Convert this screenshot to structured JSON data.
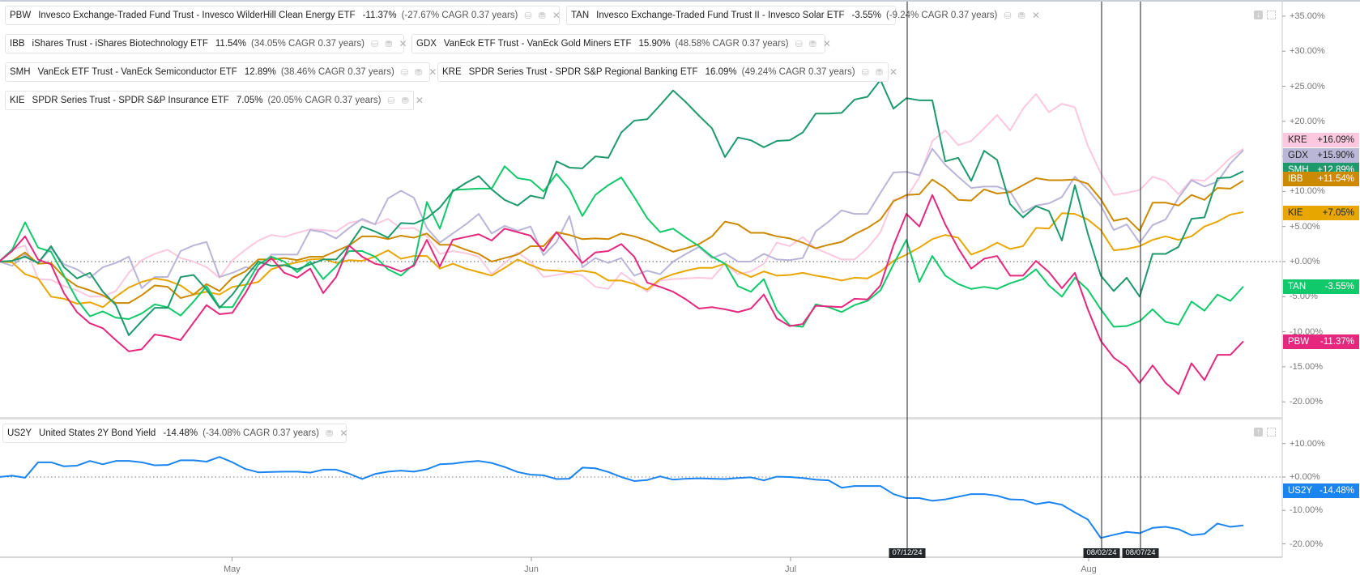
{
  "legends_top": [
    {
      "ticker": "PBW",
      "name": "Invesco Exchange-Traded Fund Trust - Invesco WilderHill Clean Energy ETF",
      "change": "-11.37%",
      "cagr": "(-27.67% CAGR 0.37 years)",
      "color": "#e5287e"
    },
    {
      "ticker": "TAN",
      "name": "Invesco Exchange-Traded Fund Trust II - Invesco Solar ETF",
      "change": "-3.55%",
      "cagr": "(-9.24% CAGR 0.37 years)",
      "color": "#10c96a"
    },
    {
      "ticker": "IBB",
      "name": "iShares Trust - iShares Biotechnology ETF",
      "change": "11.54%",
      "cagr": "(34.05% CAGR 0.37 years)",
      "color": "#cc8a00"
    },
    {
      "ticker": "GDX",
      "name": "VanEck ETF Trust - VanEck Gold Miners ETF",
      "change": "15.90%",
      "cagr": "(48.58% CAGR 0.37 years)",
      "color": "#b9b5d8"
    },
    {
      "ticker": "SMH",
      "name": "VanEck ETF Trust - VanEck Semiconductor ETF",
      "change": "12.89%",
      "cagr": "(38.46% CAGR 0.37 years)",
      "color": "#1d9a6c"
    },
    {
      "ticker": "KRE",
      "name": "SPDR Series Trust - SPDR S&P Regional Banking ETF",
      "change": "16.09%",
      "cagr": "(49.24% CAGR 0.37 years)",
      "color": "#fbc8df"
    },
    {
      "ticker": "KIE",
      "name": "SPDR Series Trust - SPDR S&P Insurance ETF",
      "change": "7.05%",
      "cagr": "(20.05% CAGR 0.37 years)",
      "color": "#e8a600"
    }
  ],
  "legend_bottom": {
    "ticker": "US2Y",
    "name": "United States 2Y Bond Yield",
    "change": "-14.48%",
    "cagr": "(-34.08% CAGR 0.37 years)",
    "color": "#1a84f0"
  },
  "badges": [
    {
      "ticker": "KRE",
      "value": "+16.09%",
      "bg": "#fbc8df",
      "fg": "#222"
    },
    {
      "ticker": "GDX",
      "value": "+15.90%",
      "bg": "#bab6d8",
      "fg": "#222"
    },
    {
      "ticker": "SMH",
      "value": "+12.89%",
      "bg": "#1d9a6c",
      "fg": "#fff"
    },
    {
      "ticker": "IBB",
      "value": "+11.54%",
      "bg": "#cc8a00",
      "fg": "#fff"
    },
    {
      "ticker": "KIE",
      "value": "+7.05%",
      "bg": "#e8a600",
      "fg": "#222"
    },
    {
      "ticker": "TAN",
      "value": "-3.55%",
      "bg": "#10c96a",
      "fg": "#fff"
    },
    {
      "ticker": "PBW",
      "value": "-11.37%",
      "bg": "#e5287e",
      "fg": "#fff"
    },
    {
      "ticker": "US2Y",
      "value": "-14.48%",
      "bg": "#1a84f0",
      "fg": "#fff"
    }
  ],
  "chart_data": [
    {
      "type": "line",
      "title": "",
      "ylabel": "",
      "ylim": [
        -20,
        35
      ],
      "yticks": [
        "+35.00%",
        "+30.00%",
        "+25.00%",
        "+20.00%",
        "+15.00%",
        "+10.00%",
        "+5.00%",
        "+0.00%",
        "-5.00%",
        "-10.00%",
        "-15.00%",
        "-20.00%"
      ],
      "ytick_values": [
        35,
        30,
        25,
        20,
        15,
        10,
        5,
        0,
        -5,
        -10,
        -15,
        -20
      ],
      "x_month_labels": [
        {
          "label": "May",
          "index": 17.9
        },
        {
          "label": "Jun",
          "index": 41
        },
        {
          "label": "Jul",
          "index": 61
        },
        {
          "label": "Aug",
          "index": 84
        }
      ],
      "markers": [
        {
          "label": "07/12/24",
          "index": 70
        },
        {
          "label": "08/02/24",
          "index": 85
        },
        {
          "label": "08/07/24",
          "index": 88
        }
      ],
      "series": [
        {
          "name": "KRE",
          "color": "#fbc8df",
          "values": [
            0,
            1.7,
            2.3,
            -2.5,
            -2.6,
            -3.5,
            -4.1,
            -5.0,
            -5.0,
            -4.2,
            -1.6,
            0.2,
            1.1,
            1.7,
            0.5,
            0,
            -0.8,
            -2.3,
            0.2,
            1.7,
            3.0,
            3.8,
            3.5,
            4.1,
            4.6,
            4.5,
            4.3,
            5.5,
            5.9,
            5.3,
            6.1,
            4.7,
            4.8,
            3.6,
            1.1,
            1.5,
            1.2,
            0.7,
            -1.8,
            -0.2,
            1.3,
            0,
            -2.2,
            -1.9,
            -1.6,
            -2.0,
            -3.6,
            -3.9,
            -1.6,
            -2.9,
            -4.3,
            -2.7,
            -2.5,
            -2.4,
            -2.3,
            -2.4,
            -0.3,
            -1.8,
            -1.4,
            -0.3,
            2.7,
            2.2,
            3.5,
            1.9,
            1.1,
            0.3,
            0.3,
            1.9,
            4.2,
            8.8,
            9.1,
            12.0,
            17.2,
            18.7,
            16.6,
            17.2,
            19.0,
            20.9,
            18.7,
            21.8,
            23.9,
            21.3,
            22.5,
            22.0,
            16.5,
            12.6,
            9.5,
            9.8,
            10.2,
            12.1,
            11.5,
            9.6,
            11.7,
            11.5,
            13.0,
            14.8,
            16.09
          ]
        },
        {
          "name": "GDX",
          "color": "#b9b5d8",
          "values": [
            0,
            -0.6,
            1.0,
            -0.2,
            1.9,
            -0.4,
            -1.1,
            -2.3,
            -0.8,
            -0.2,
            0.7,
            -3.8,
            -2.2,
            -2.2,
            1.5,
            2.3,
            2.8,
            -2.2,
            -1.6,
            -0.8,
            -1.2,
            1.0,
            1.0,
            1.0,
            4.5,
            4.2,
            3.3,
            4.8,
            6.1,
            5.3,
            9.0,
            10.1,
            9.1,
            4.8,
            2.7,
            4.0,
            5.3,
            6.8,
            4.0,
            5.1,
            4.4,
            5.0,
            0.9,
            2.8,
            6.5,
            -0.8,
            0.5,
            -0.2,
            0.5,
            -2.0,
            -1.3,
            -1.8,
            0,
            1.1,
            2.1,
            0.5,
            1.2,
            0,
            0,
            1.1,
            0.3,
            0.2,
            0.5,
            4.3,
            5.7,
            7.3,
            6.8,
            6.8,
            9.8,
            12.7,
            12.8,
            12.3,
            16.1,
            13.8,
            12.1,
            10.5,
            10.7,
            10.7,
            10.0,
            7.0,
            8.0,
            8.3,
            9.2,
            12.1,
            10.3,
            8.0,
            4.5,
            5.3,
            2.7,
            5.2,
            6.0,
            9.1,
            11.6,
            10.7,
            11.4,
            14.0,
            15.9
          ]
        },
        {
          "name": "KIE",
          "color": "#e8a600",
          "values": [
            0,
            -0.1,
            -1.8,
            -2.4,
            -5.0,
            -5.3,
            -6.0,
            -5.8,
            -6.5,
            -5.0,
            -3.7,
            -2.9,
            -2.4,
            -2.7,
            -3.4,
            -4.7,
            -4.3,
            -4.7,
            -3.6,
            -3.3,
            -2.9,
            -1.1,
            -0.5,
            -0.1,
            0.3,
            0.4,
            -0.2,
            0.2,
            0.1,
            0.7,
            1.6,
            0.4,
            0.8,
            0.8,
            -1.0,
            -0.3,
            -1.0,
            -1.5,
            -2.0,
            -0.9,
            0.3,
            -0.5,
            -1.2,
            -1.3,
            -1.5,
            -1.3,
            -1.6,
            -2.7,
            -2.7,
            -3.2,
            -4.0,
            -2.5,
            -1.8,
            -1.3,
            -0.9,
            -0.9,
            -0.3,
            -1.4,
            -2.2,
            -1.4,
            -2.0,
            -1.9,
            -1.6,
            -2.0,
            -2.3,
            -2.7,
            -2.3,
            -2.4,
            -1.4,
            0.1,
            1.0,
            2.0,
            3.2,
            3.8,
            3.4,
            1.0,
            1.7,
            2.7,
            1.8,
            2.2,
            4.8,
            4.7,
            6.9,
            6.8,
            6.0,
            4.5,
            1.6,
            1.8,
            2.2,
            3.1,
            3.6,
            3.1,
            3.6,
            5.0,
            5.7,
            6.7,
            7.05
          ]
        },
        {
          "name": "IBB",
          "color": "#cc8a00",
          "values": [
            0,
            0.1,
            1.3,
            -0.3,
            -0.2,
            -2.2,
            -3.5,
            -4.1,
            -4.8,
            -5.9,
            -5.9,
            -4.8,
            -3.4,
            -3.6,
            -5.2,
            -4.7,
            -3.2,
            -4.2,
            -2.3,
            -1.4,
            0.3,
            0.3,
            0.5,
            0.2,
            0.7,
            0.7,
            1.5,
            2.3,
            3.6,
            3.6,
            3.2,
            3.7,
            3.4,
            4.0,
            2.4,
            2.4,
            1.7,
            1.1,
            0,
            0.5,
            1.0,
            2.2,
            2.2,
            4.2,
            3.8,
            3.2,
            3.3,
            3.2,
            4.0,
            3.6,
            3.0,
            2.2,
            1.4,
            1.9,
            2.5,
            3.6,
            5.7,
            5.3,
            4.1,
            4.1,
            3.6,
            3.3,
            2.7,
            1.9,
            2.4,
            2.8,
            3.9,
            4.8,
            6.0,
            8.6,
            9.5,
            9.6,
            11.7,
            10.5,
            8.8,
            8.7,
            10.3,
            9.7,
            9.9,
            10.9,
            11.9,
            11.6,
            11.6,
            11.7,
            11.1,
            8.9,
            5.8,
            6.2,
            4.4,
            8.4,
            8.4,
            8.0,
            9.5,
            8.8,
            10.5,
            10.4,
            11.54
          ]
        },
        {
          "name": "TAN",
          "color": "#10c96a",
          "values": [
            0,
            1.7,
            5.6,
            2.0,
            1.4,
            -2.0,
            -5.4,
            -7.8,
            -7.1,
            -8.0,
            -8.2,
            -7.4,
            -6.1,
            -6.5,
            -7.7,
            -5.7,
            -3.5,
            -6.5,
            -6.5,
            -3.5,
            -0.4,
            0.7,
            0,
            -1.5,
            0,
            -2.5,
            -0.7,
            1.5,
            1.5,
            0.7,
            -1.1,
            -2.0,
            -0.4,
            8.5,
            4.7,
            10.2,
            10.3,
            10.4,
            10.4,
            13.6,
            11.9,
            11.6,
            10.0,
            12.5,
            10.3,
            6.5,
            9.5,
            10.9,
            12.0,
            9.2,
            6.2,
            4.2,
            4.7,
            3.4,
            2.2,
            0.7,
            -0.3,
            -3.5,
            -4.3,
            -2.5,
            -6.9,
            -9.1,
            -9.3,
            -6.1,
            -6.5,
            -7.2,
            -6.2,
            -5.6,
            -4.1,
            -0.4,
            3.1,
            -2.9,
            0.8,
            -2.0,
            -3.2,
            -3.9,
            -3.6,
            -3.9,
            -3.1,
            -2.5,
            -1.1,
            -3.4,
            -5.0,
            -2.3,
            -4.0,
            -6.8,
            -9.3,
            -9.2,
            -8.5,
            -6.8,
            -8.6,
            -9.0,
            -5.7,
            -7.0,
            -4.7,
            -5.6,
            -3.55
          ]
        },
        {
          "name": "SMH",
          "color": "#1d9a6c",
          "values": [
            0,
            0.1,
            0.7,
            -0.2,
            2.2,
            -0.8,
            -2.4,
            -1.6,
            -4.3,
            -6.2,
            -10.5,
            -8.5,
            -6.6,
            -6.6,
            -2.2,
            -1.9,
            -4.0,
            -6.6,
            -4.7,
            -2.2,
            0,
            -0.6,
            -0.5,
            -1.1,
            -0.4,
            0.3,
            0.3,
            2.3,
            5.0,
            4.3,
            3.4,
            5.5,
            5.4,
            6.2,
            7.7,
            10.0,
            11.2,
            12.2,
            10.3,
            8.8,
            8.0,
            9.4,
            9.0,
            14.3,
            13.4,
            13.3,
            15.0,
            14.8,
            18.4,
            20.1,
            20.3,
            22.3,
            24.4,
            22.7,
            20.8,
            19.0,
            14.9,
            17.7,
            17.3,
            16.3,
            17.2,
            17.3,
            18.4,
            21.1,
            21.1,
            21.2,
            23.1,
            23.5,
            25.9,
            21.8,
            23.3,
            23.0,
            23.0,
            14.3,
            14.8,
            11.5,
            15.8,
            14.5,
            8.2,
            6.3,
            7.9,
            7.2,
            3.0,
            10.9,
            4.0,
            -2.0,
            -4.2,
            -2.3,
            -5.0,
            1.1,
            1.1,
            2.1,
            6.1,
            6.3,
            11.9,
            12.0,
            12.89
          ]
        },
        {
          "name": "PBW",
          "color": "#e5287e",
          "values": [
            0,
            1.5,
            3.6,
            0.3,
            -0.4,
            -4.5,
            -7.2,
            -8.8,
            -9.5,
            -11.2,
            -12.8,
            -12.5,
            -10.4,
            -10.7,
            -11.2,
            -8.7,
            -6.2,
            -7.5,
            -7.3,
            -4.5,
            -1.2,
            0.5,
            -1.6,
            -2.3,
            -1.0,
            -4.5,
            -2.2,
            2.3,
            0.7,
            -0.3,
            -0.7,
            -1.4,
            -0.6,
            3.1,
            -0.7,
            3.1,
            3.5,
            3.9,
            3.0,
            4.7,
            4.2,
            3.7,
            1.5,
            4.2,
            2.0,
            -0.2,
            1.3,
            1.5,
            2.5,
            0.7,
            -3.0,
            -3.6,
            -4.3,
            -5.4,
            -6.7,
            -6.5,
            -6.8,
            -7.2,
            -6.7,
            -4.7,
            -8.1,
            -9.2,
            -8.9,
            -6.3,
            -6.4,
            -6.5,
            -5.3,
            -5.4,
            -3.4,
            2.3,
            6.8,
            5.0,
            9.5,
            5.3,
            1.9,
            -1.0,
            0.4,
            0.8,
            -2.0,
            -2.0,
            0.1,
            -1.5,
            -3.8,
            -1.6,
            -6.8,
            -11.3,
            -13.7,
            -15.0,
            -17.3,
            -14.8,
            -17.3,
            -18.9,
            -14.5,
            -16.9,
            -13.3,
            -13.3,
            -11.37
          ]
        }
      ]
    },
    {
      "type": "line",
      "ylim": [
        -20,
        10
      ],
      "yticks": [
        "+10.00%",
        "+0.00%",
        "-10.00%",
        "-20.00%"
      ],
      "ytick_values": [
        10,
        0,
        -10,
        -20
      ],
      "series": [
        {
          "name": "US2Y",
          "color": "#1a84f0",
          "values": [
            0,
            0.4,
            -0.2,
            4.4,
            4.4,
            3.2,
            3.4,
            4.8,
            3.8,
            4.8,
            4.8,
            4.4,
            3.5,
            3.6,
            5.0,
            5.0,
            4.6,
            6.0,
            4.4,
            2.4,
            1.4,
            1.5,
            1.6,
            1.6,
            1.3,
            2.2,
            2.2,
            1.0,
            -0.6,
            0.9,
            1.6,
            1.9,
            1.6,
            2.3,
            3.8,
            4.0,
            4.5,
            4.8,
            4.2,
            3.0,
            1.5,
            0.7,
            0.5,
            -0.6,
            -0.5,
            2.8,
            2.6,
            1.5,
            0,
            -1.2,
            -0.9,
            0.2,
            -0.8,
            -0.5,
            -0.4,
            -0.5,
            -0.6,
            -0.3,
            -0.1,
            -1.0,
            0.1,
            0,
            -0.3,
            -0.8,
            -1.0,
            -3.2,
            -2.7,
            -2.7,
            -2.7,
            -5.1,
            -6.3,
            -6.3,
            -7.1,
            -6.7,
            -5.9,
            -5.1,
            -5.1,
            -5.6,
            -6.7,
            -6.8,
            -8.1,
            -7.5,
            -8.3,
            -10.6,
            -12.7,
            -18.2,
            -17.3,
            -16.4,
            -16.8,
            -15.2,
            -14.9,
            -15.6,
            -17.4,
            -17.0,
            -13.9,
            -14.9,
            -14.48
          ]
        }
      ]
    }
  ]
}
